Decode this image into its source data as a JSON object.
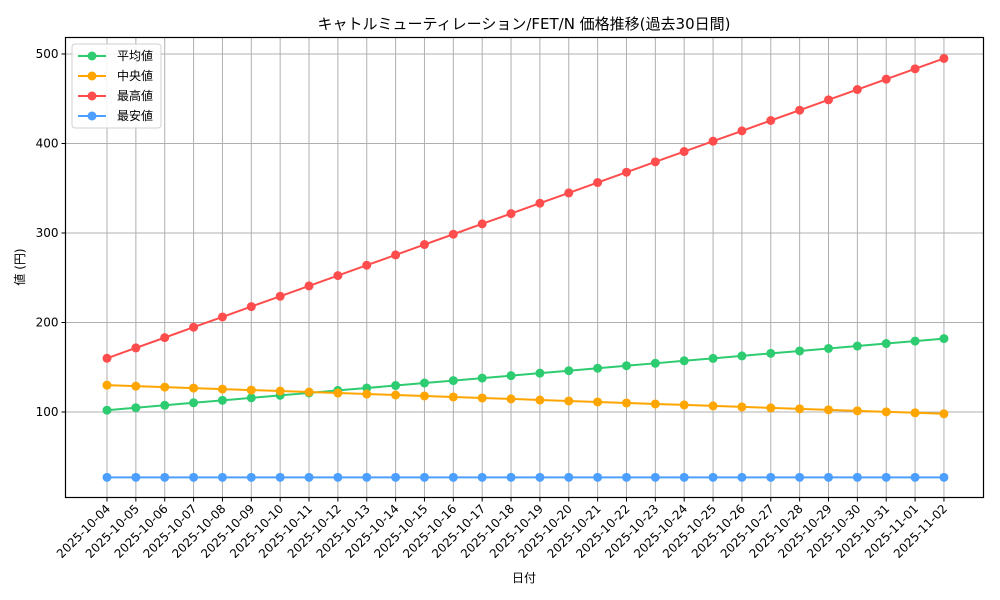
{
  "chart_data": {
    "type": "line",
    "title": "キャトルミューティレーション/FET/N 価格推移(過去30日間)",
    "xlabel": "日付",
    "ylabel": "値 (円)",
    "ylim": [
      10,
      520
    ],
    "yticks": [
      100,
      200,
      300,
      400,
      500
    ],
    "grid": true,
    "legend_position": "upper left",
    "categories": [
      "2025-10-04",
      "2025-10-05",
      "2025-10-06",
      "2025-10-07",
      "2025-10-08",
      "2025-10-09",
      "2025-10-10",
      "2025-10-11",
      "2025-10-12",
      "2025-10-13",
      "2025-10-14",
      "2025-10-15",
      "2025-10-16",
      "2025-10-17",
      "2025-10-18",
      "2025-10-19",
      "2025-10-20",
      "2025-10-21",
      "2025-10-22",
      "2025-10-23",
      "2025-10-24",
      "2025-10-25",
      "2025-10-26",
      "2025-10-27",
      "2025-10-28",
      "2025-10-29",
      "2025-10-30",
      "2025-10-31",
      "2025-11-01",
      "2025-11-02"
    ],
    "series": [
      {
        "name": "平均値",
        "color": "#2ecc71",
        "values": [
          102,
          104.8,
          107.5,
          110.3,
          113,
          115.8,
          118.6,
          121.3,
          124.1,
          126.8,
          129.6,
          132.4,
          135.1,
          137.9,
          140.6,
          143.4,
          146.1,
          148.9,
          151.7,
          154.4,
          157.2,
          159.9,
          162.7,
          165.5,
          168.2,
          171,
          173.7,
          176.5,
          179.2,
          182
        ]
      },
      {
        "name": "中央値",
        "color": "#ffa500",
        "values": [
          130,
          128.9,
          127.8,
          126.7,
          125.6,
          124.5,
          123.4,
          122.3,
          121.2,
          120.1,
          119,
          117.9,
          116.8,
          115.7,
          114.6,
          113.4,
          112.3,
          111.2,
          110.1,
          109,
          107.9,
          106.8,
          105.7,
          104.6,
          103.5,
          102.4,
          101.3,
          100.2,
          99.1,
          98
        ]
      },
      {
        "name": "最高値",
        "color": "#ff4d4d",
        "values": [
          160,
          171.6,
          183.1,
          194.7,
          206.2,
          217.8,
          229.3,
          240.9,
          252.4,
          264,
          275.5,
          287.1,
          298.6,
          310.2,
          321.7,
          333.3,
          344.8,
          356.4,
          367.9,
          379.5,
          391,
          402.6,
          414.1,
          425.7,
          437.2,
          448.8,
          460.3,
          471.9,
          483.4,
          495
        ]
      },
      {
        "name": "最安値",
        "color": "#4d9fff",
        "values": [
          27,
          27,
          27,
          27,
          27,
          27,
          27,
          27,
          27,
          27,
          27,
          27,
          27,
          27,
          27,
          27,
          27,
          27,
          27,
          27,
          27,
          27,
          27,
          27,
          27,
          27,
          27,
          27,
          27,
          27
        ]
      }
    ]
  }
}
